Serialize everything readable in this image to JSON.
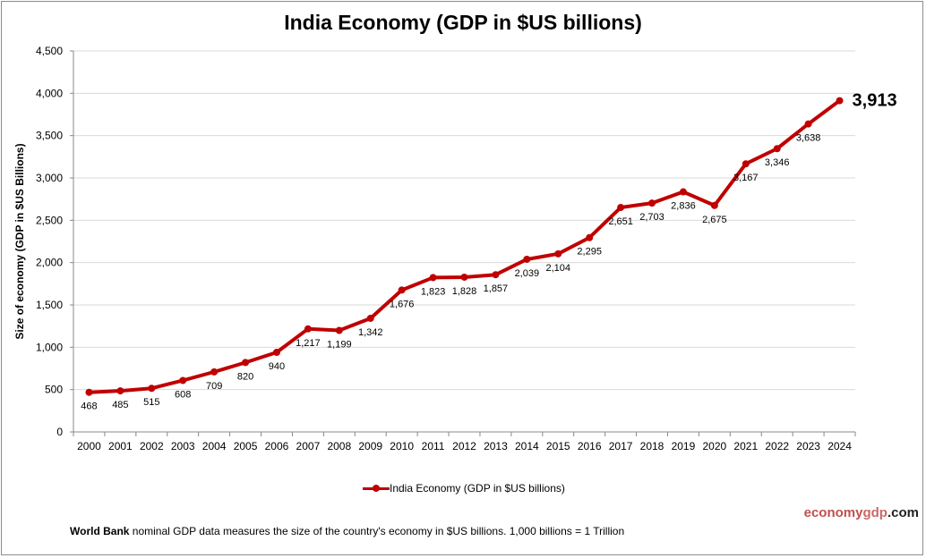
{
  "chart_data": {
    "type": "line",
    "title": "India Economy (GDP in $US billions)",
    "xlabel": "",
    "ylabel": "Size of economy (GDP in $US Billions)",
    "ylim": [
      0,
      4500
    ],
    "yticks": [
      "0",
      "500",
      "1,000",
      "1,500",
      "2,000",
      "2,500",
      "3,000",
      "3,500",
      "4,000",
      "4,500"
    ],
    "grid": true,
    "legend_position": "bottom",
    "categories": [
      "2000",
      "2001",
      "2002",
      "2003",
      "2004",
      "2005",
      "2006",
      "2007",
      "2008",
      "2009",
      "2010",
      "2011",
      "2012",
      "2013",
      "2014",
      "2015",
      "2016",
      "2017",
      "2018",
      "2019",
      "2020",
      "2021",
      "2022",
      "2023",
      "2024"
    ],
    "series": [
      {
        "name": "India Economy (GDP in $US billions)",
        "color": "#c00000",
        "values": [
          468,
          485,
          515,
          608,
          709,
          820,
          940,
          1217,
          1199,
          1342,
          1676,
          1823,
          1828,
          1857,
          2039,
          2104,
          2295,
          2651,
          2703,
          2836,
          2675,
          3167,
          3346,
          3638,
          3913
        ],
        "labels": [
          "468",
          "485",
          "515",
          "608",
          "709",
          "820",
          "940",
          "1,217",
          "1,199",
          "1,342",
          "1,676",
          "1,823",
          "1,828",
          "1,857",
          "2,039",
          "2,104",
          "2,295",
          "2,651",
          "2,703",
          "2,836",
          "2,675",
          "3,167",
          "3,346",
          "3,638",
          "3,913"
        ]
      }
    ]
  },
  "brand": {
    "part1": "economy",
    "part2": "gdp",
    "part3": ".com"
  },
  "footer": {
    "bold": "World Bank",
    "text": " nominal GDP data  measures the size of the country's economy in $US billions. 1,000 billions = 1 Trillion"
  }
}
